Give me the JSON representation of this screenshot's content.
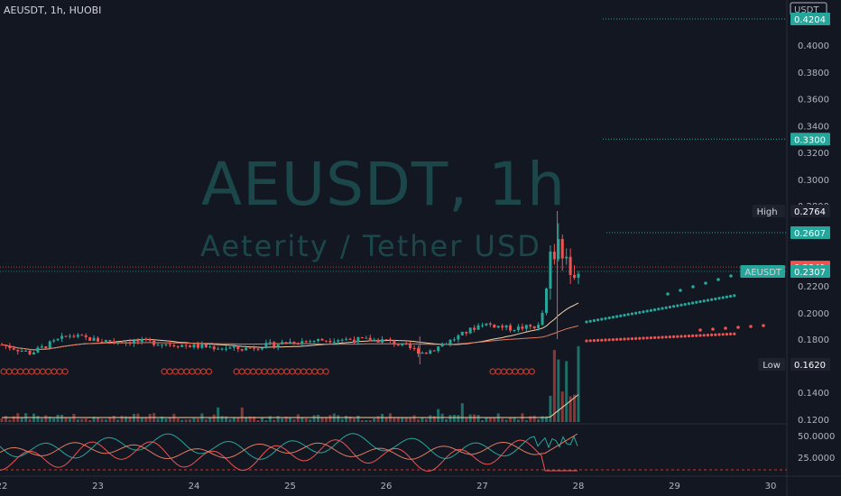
{
  "header": {
    "symbol_line": "AEUSDT, 1h, HUOBI"
  },
  "watermark": {
    "title": "AEUSDT, 1h",
    "subtitle": "Aeterity / Tether USD"
  },
  "colors": {
    "background": "#131722",
    "up": "#26a69a",
    "down": "#ef5350",
    "teal_line": "#26a69a",
    "red_line": "#ef5350",
    "gridline": "#1e222d",
    "watermark": "#1d4a4d"
  },
  "price_axis": {
    "currency_label": "USDT",
    "ticks": [
      "0.4000",
      "0.3800",
      "0.3600",
      "0.3400",
      "0.3200",
      "0.3000",
      "0.2800",
      "0.2200",
      "0.2000",
      "0.1800",
      "0.1400",
      "0.1200"
    ],
    "tags": [
      {
        "value": "0.4204",
        "color": "#26a69a"
      },
      {
        "value": "0.3300",
        "color": "#26a69a"
      },
      {
        "value": "0.2764",
        "color": "#1e222d",
        "name": "High"
      },
      {
        "value": "0.2607",
        "color": "#26a69a"
      },
      {
        "value": "0.2341",
        "color": "#ef5350"
      },
      {
        "value": "0.2307",
        "color": "#26a69a",
        "name": "AEUSDT"
      },
      {
        "value": "0.1620",
        "color": "#1e222d",
        "name": "Low"
      }
    ]
  },
  "indicator_axis": {
    "ticks": [
      "50.0000",
      "25.0000"
    ]
  },
  "time_axis": {
    "labels": [
      "22",
      "23",
      "24",
      "25",
      "26",
      "27",
      "28",
      "29",
      "30"
    ]
  },
  "chart_data": {
    "type": "candlestick",
    "symbol": "AEUSDT",
    "interval": "1h",
    "exchange": "HUOBI",
    "current_price": 0.2307,
    "high": 0.2764,
    "low": 0.162,
    "horizontal_levels": [
      0.4204,
      0.33,
      0.2607
    ],
    "x_labels": [
      "22",
      "23",
      "24",
      "25",
      "26",
      "27",
      "28",
      "29",
      "30"
    ],
    "ylim": [
      0.112,
      0.425
    ],
    "y_ticks": [
      0.4,
      0.38,
      0.36,
      0.34,
      0.32,
      0.3,
      0.28,
      0.22,
      0.2,
      0.18,
      0.14,
      0.12
    ],
    "indicator_y_ticks": [
      50,
      25
    ],
    "approx_close_path": [
      {
        "day": 22.0,
        "price": 0.176
      },
      {
        "day": 22.3,
        "price": 0.17
      },
      {
        "day": 22.7,
        "price": 0.183
      },
      {
        "day": 23.0,
        "price": 0.179
      },
      {
        "day": 23.5,
        "price": 0.178
      },
      {
        "day": 24.0,
        "price": 0.175
      },
      {
        "day": 24.5,
        "price": 0.173
      },
      {
        "day": 25.0,
        "price": 0.178
      },
      {
        "day": 25.5,
        "price": 0.18
      },
      {
        "day": 26.0,
        "price": 0.179
      },
      {
        "day": 26.4,
        "price": 0.17
      },
      {
        "day": 26.7,
        "price": 0.18
      },
      {
        "day": 27.0,
        "price": 0.192
      },
      {
        "day": 27.3,
        "price": 0.188
      },
      {
        "day": 27.6,
        "price": 0.19
      },
      {
        "day": 27.75,
        "price": 0.25
      },
      {
        "day": 27.85,
        "price": 0.24
      },
      {
        "day": 28.0,
        "price": 0.2307
      }
    ]
  }
}
